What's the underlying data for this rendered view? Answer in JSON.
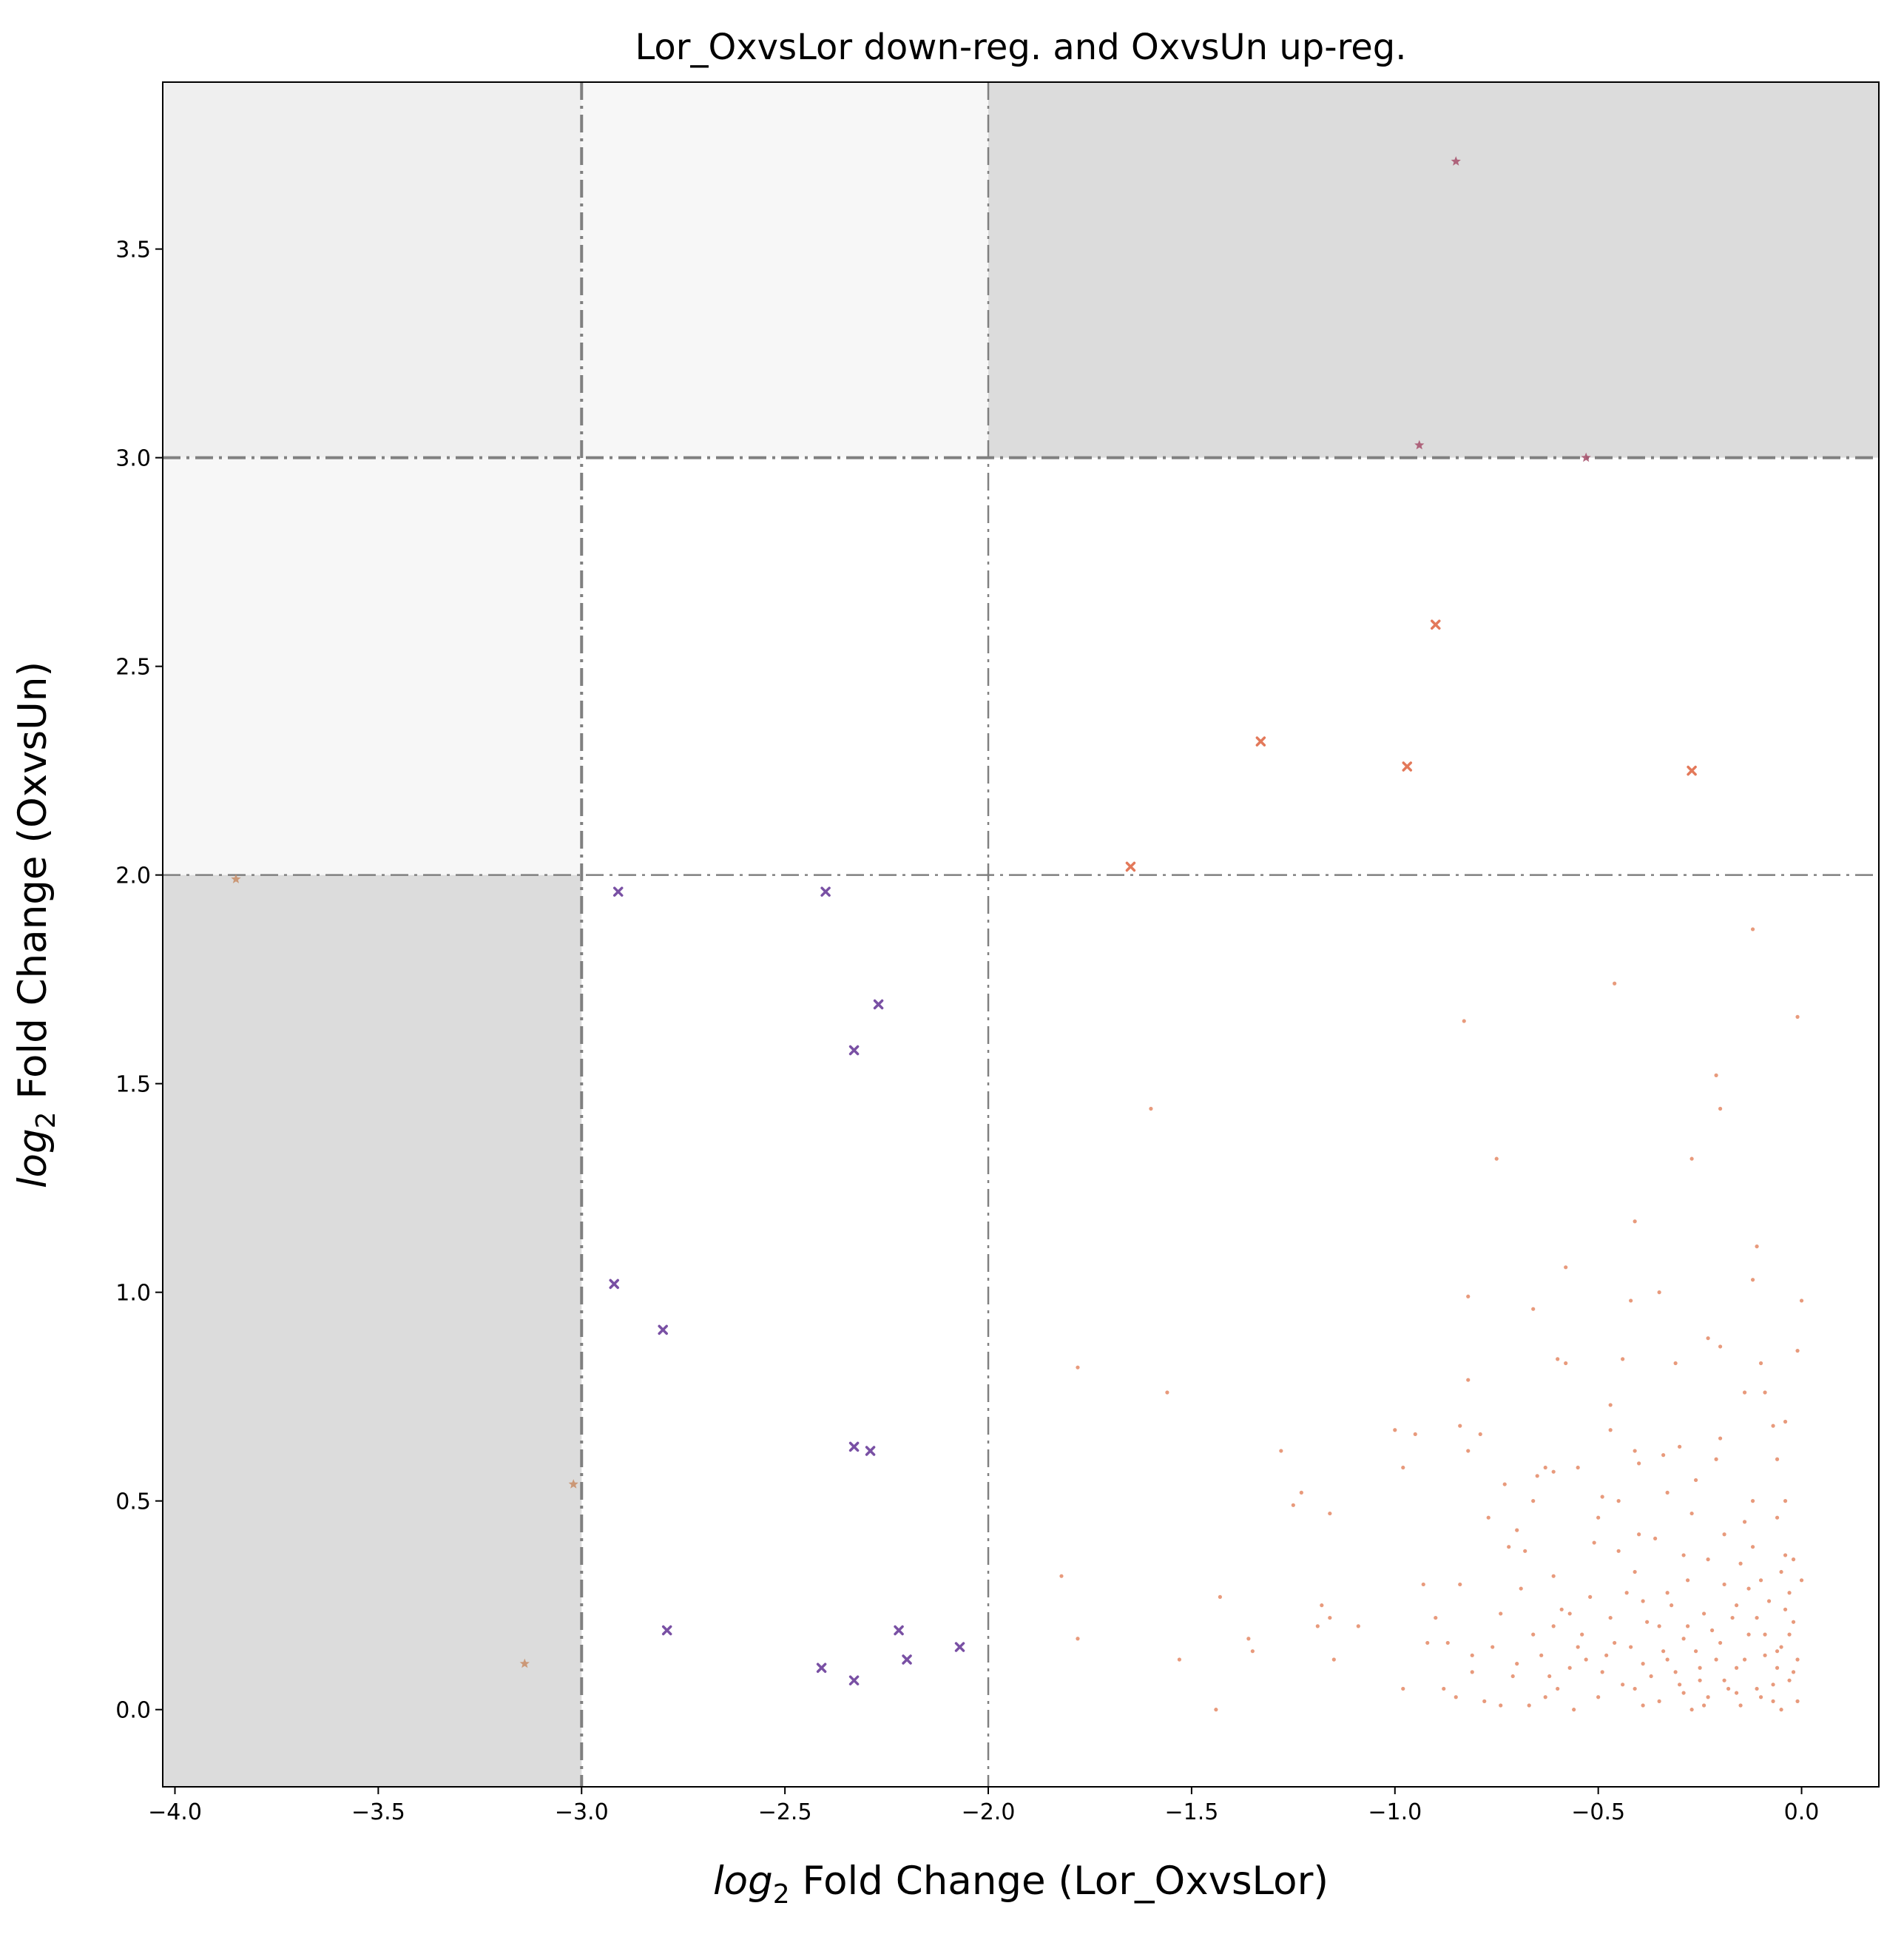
{
  "chart_data": {
    "type": "scatter",
    "title": "Lor_OxvsLor down-reg. and OxvsUn up-reg.",
    "xlabel_prefix": "log",
    "xlabel_sub": "2",
    "xlabel_rest": " Fold Change (Lor_OxvsLor)",
    "ylabel_prefix": "log",
    "ylabel_sub": "2",
    "ylabel_rest": " Fold Change (OxvsUn)",
    "xlim": [
      -4.03,
      0.19
    ],
    "ylim": [
      -0.185,
      3.9
    ],
    "xticks": [
      -4.0,
      -3.5,
      -3.0,
      -2.5,
      -2.0,
      -1.5,
      -1.0,
      -0.5,
      0.0
    ],
    "xtick_labels": [
      "−4.0",
      "−3.5",
      "−3.0",
      "−2.5",
      "−2.0",
      "−1.5",
      "−1.0",
      "−0.5",
      "0.0"
    ],
    "yticks": [
      0.0,
      0.5,
      1.0,
      1.5,
      2.0,
      2.5,
      3.0,
      3.5
    ],
    "ytick_labels": [
      "0.0",
      "0.5",
      "1.0",
      "1.5",
      "2.0",
      "2.5",
      "3.0",
      "3.5"
    ],
    "grid": false,
    "shaded_regions": [
      {
        "x": [
          -4.03,
          -3.0
        ],
        "y": [
          3.0,
          3.9
        ],
        "color": "#efefef"
      },
      {
        "x": [
          -3.0,
          -2.0
        ],
        "y": [
          3.0,
          3.9
        ],
        "color": "#f7f7f7"
      },
      {
        "x": [
          -2.0,
          0.19
        ],
        "y": [
          3.0,
          3.9
        ],
        "color": "#dcdcdc"
      },
      {
        "x": [
          -4.03,
          -3.0
        ],
        "y": [
          2.0,
          3.0
        ],
        "color": "#f7f7f7"
      },
      {
        "x": [
          -4.03,
          -3.0
        ],
        "y": [
          -0.185,
          2.0
        ],
        "color": "#dcdcdc"
      }
    ],
    "reference_lines": [
      {
        "orientation": "vertical",
        "value": -3.0,
        "width": 4
      },
      {
        "orientation": "vertical",
        "value": -2.0,
        "width": 2.5
      },
      {
        "orientation": "horizontal",
        "value": 3.0,
        "width": 4
      },
      {
        "orientation": "horizontal",
        "value": 2.0,
        "width": 2.5
      }
    ],
    "series": [
      {
        "marker": "star",
        "color": "#a85570",
        "points": [
          [
            -0.85,
            3.71
          ],
          [
            -0.94,
            3.03
          ],
          [
            -0.53,
            3.0
          ]
        ]
      },
      {
        "marker": "x",
        "color": "#e06a48",
        "points": [
          [
            -0.9,
            2.6
          ],
          [
            -1.33,
            2.32
          ],
          [
            -0.97,
            2.26
          ],
          [
            -0.27,
            2.25
          ],
          [
            -1.65,
            2.02
          ]
        ]
      },
      {
        "marker": "star",
        "color": "#c9906c",
        "points": [
          [
            -3.85,
            1.99
          ],
          [
            -3.02,
            0.54
          ],
          [
            -3.14,
            0.11
          ]
        ]
      },
      {
        "marker": "x",
        "color": "#6a3d9a",
        "points": [
          [
            -2.91,
            1.96
          ],
          [
            -2.4,
            1.96
          ],
          [
            -2.27,
            1.69
          ],
          [
            -2.33,
            1.58
          ],
          [
            -2.92,
            1.02
          ],
          [
            -2.8,
            0.91
          ],
          [
            -2.33,
            0.63
          ],
          [
            -2.29,
            0.62
          ],
          [
            -2.79,
            0.19
          ],
          [
            -2.22,
            0.19
          ],
          [
            -2.2,
            0.12
          ],
          [
            -2.07,
            0.15
          ],
          [
            -2.41,
            0.1
          ],
          [
            -2.33,
            0.07
          ]
        ]
      },
      {
        "marker": "dot",
        "color": "#e07850",
        "points": [
          [
            -0.12,
            1.87
          ],
          [
            -0.01,
            1.66
          ],
          [
            -0.46,
            1.74
          ],
          [
            -0.83,
            1.65
          ],
          [
            -1.6,
            1.44
          ],
          [
            -0.21,
            1.52
          ],
          [
            -0.2,
            1.44
          ],
          [
            -0.75,
            1.32
          ],
          [
            -0.27,
            1.32
          ],
          [
            -0.41,
            1.17
          ],
          [
            -0.11,
            1.11
          ],
          [
            -0.58,
            1.06
          ],
          [
            -0.35,
            1.0
          ],
          [
            -0.82,
            0.99
          ],
          [
            -0.42,
            0.98
          ],
          [
            -0.12,
            1.03
          ],
          [
            0.0,
            0.98
          ],
          [
            -0.66,
            0.96
          ],
          [
            -0.23,
            0.89
          ],
          [
            -0.2,
            0.87
          ],
          [
            -1.78,
            0.82
          ],
          [
            -0.6,
            0.84
          ],
          [
            -0.58,
            0.83
          ],
          [
            -0.31,
            0.83
          ],
          [
            -0.1,
            0.83
          ],
          [
            -0.44,
            0.84
          ],
          [
            -0.01,
            0.86
          ],
          [
            -0.82,
            0.79
          ],
          [
            -1.56,
            0.76
          ],
          [
            -0.09,
            0.76
          ],
          [
            -0.14,
            0.76
          ],
          [
            -0.47,
            0.73
          ],
          [
            -0.84,
            0.68
          ],
          [
            -1.0,
            0.67
          ],
          [
            -0.95,
            0.66
          ],
          [
            -0.79,
            0.66
          ],
          [
            -0.2,
            0.65
          ],
          [
            -0.47,
            0.67
          ],
          [
            -0.07,
            0.68
          ],
          [
            -0.04,
            0.69
          ],
          [
            -0.3,
            0.63
          ],
          [
            -1.28,
            0.62
          ],
          [
            -0.82,
            0.62
          ],
          [
            -0.41,
            0.62
          ],
          [
            -0.34,
            0.61
          ],
          [
            -0.55,
            0.58
          ],
          [
            -0.98,
            0.58
          ],
          [
            -0.4,
            0.59
          ],
          [
            -0.21,
            0.6
          ],
          [
            -0.06,
            0.6
          ],
          [
            -0.63,
            0.58
          ],
          [
            -0.65,
            0.56
          ],
          [
            -0.73,
            0.54
          ],
          [
            -0.61,
            0.57
          ],
          [
            -1.23,
            0.52
          ],
          [
            -0.26,
            0.55
          ],
          [
            -0.33,
            0.52
          ],
          [
            -0.49,
            0.51
          ],
          [
            -0.45,
            0.5
          ],
          [
            -0.12,
            0.5
          ],
          [
            -0.04,
            0.5
          ],
          [
            -0.66,
            0.5
          ],
          [
            -1.25,
            0.49
          ],
          [
            -1.16,
            0.47
          ],
          [
            -0.77,
            0.46
          ],
          [
            -0.5,
            0.46
          ],
          [
            -0.27,
            0.47
          ],
          [
            -0.14,
            0.45
          ],
          [
            -0.06,
            0.46
          ],
          [
            -0.7,
            0.43
          ],
          [
            -0.4,
            0.42
          ],
          [
            -0.19,
            0.42
          ],
          [
            -0.36,
            0.41
          ],
          [
            -0.51,
            0.4
          ],
          [
            -0.12,
            0.39
          ],
          [
            -0.04,
            0.37
          ],
          [
            -0.02,
            0.36
          ],
          [
            -0.29,
            0.37
          ],
          [
            -0.72,
            0.39
          ],
          [
            -0.68,
            0.38
          ],
          [
            -0.45,
            0.38
          ],
          [
            -0.23,
            0.36
          ],
          [
            -0.15,
            0.35
          ],
          [
            -0.41,
            0.33
          ],
          [
            -1.82,
            0.32
          ],
          [
            -0.61,
            0.32
          ],
          [
            -0.05,
            0.33
          ],
          [
            -0.28,
            0.31
          ],
          [
            -0.84,
            0.3
          ],
          [
            -0.93,
            0.3
          ],
          [
            -0.19,
            0.3
          ],
          [
            -0.1,
            0.31
          ],
          [
            -0.33,
            0.28
          ],
          [
            -0.52,
            0.27
          ],
          [
            -0.69,
            0.29
          ],
          [
            -0.03,
            0.28
          ],
          [
            -1.43,
            0.27
          ],
          [
            -0.39,
            0.26
          ],
          [
            -0.16,
            0.25
          ],
          [
            -0.08,
            0.26
          ],
          [
            -0.24,
            0.23
          ],
          [
            -0.57,
            0.23
          ],
          [
            -0.74,
            0.23
          ],
          [
            -0.47,
            0.22
          ],
          [
            -0.11,
            0.22
          ],
          [
            -1.18,
            0.25
          ],
          [
            -1.16,
            0.22
          ],
          [
            -0.9,
            0.22
          ],
          [
            -1.09,
            0.2
          ],
          [
            -1.19,
            0.2
          ],
          [
            -0.61,
            0.2
          ],
          [
            -0.35,
            0.2
          ],
          [
            -0.02,
            0.21
          ],
          [
            -0.66,
            0.18
          ],
          [
            -0.54,
            0.18
          ],
          [
            -0.29,
            0.17
          ],
          [
            -0.13,
            0.18
          ],
          [
            -0.2,
            0.16
          ],
          [
            -1.78,
            0.17
          ],
          [
            -1.36,
            0.17
          ],
          [
            -1.35,
            0.14
          ],
          [
            -0.76,
            0.15
          ],
          [
            -0.42,
            0.15
          ],
          [
            -0.05,
            0.15
          ],
          [
            -0.92,
            0.16
          ],
          [
            -0.87,
            0.16
          ],
          [
            -0.64,
            0.13
          ],
          [
            -0.48,
            0.13
          ],
          [
            -0.33,
            0.12
          ],
          [
            -0.09,
            0.13
          ],
          [
            -0.01,
            0.12
          ],
          [
            -1.53,
            0.12
          ],
          [
            -1.15,
            0.12
          ],
          [
            -0.57,
            0.1
          ],
          [
            -0.25,
            0.1
          ],
          [
            -0.16,
            0.1
          ],
          [
            -0.06,
            0.1
          ],
          [
            -0.81,
            0.09
          ],
          [
            -0.71,
            0.08
          ],
          [
            -0.37,
            0.08
          ],
          [
            -0.44,
            0.06
          ],
          [
            -0.19,
            0.07
          ],
          [
            -0.03,
            0.07
          ],
          [
            -0.98,
            0.05
          ],
          [
            -0.88,
            0.05
          ],
          [
            -0.6,
            0.05
          ],
          [
            -0.29,
            0.04
          ],
          [
            -0.11,
            0.05
          ],
          [
            -0.5,
            0.03
          ],
          [
            -0.23,
            0.03
          ],
          [
            -0.07,
            0.02
          ],
          [
            -0.01,
            0.02
          ],
          [
            -0.78,
            0.02
          ],
          [
            -0.67,
            0.01
          ],
          [
            -0.39,
            0.01
          ],
          [
            -0.15,
            0.01
          ],
          [
            -1.44,
            0.0
          ],
          [
            -0.05,
            0.0
          ],
          [
            -0.27,
            0.0
          ],
          [
            -0.56,
            0.0
          ],
          [
            -0.85,
            0.03
          ],
          [
            -0.74,
            0.01
          ],
          [
            -0.62,
            0.08
          ],
          [
            -0.53,
            0.12
          ],
          [
            -0.46,
            0.16
          ],
          [
            -0.41,
            0.05
          ],
          [
            -0.35,
            0.02
          ],
          [
            -0.31,
            0.09
          ],
          [
            -0.26,
            0.14
          ],
          [
            -0.22,
            0.19
          ],
          [
            -0.18,
            0.05
          ],
          [
            -0.14,
            0.12
          ],
          [
            -0.09,
            0.18
          ],
          [
            -0.07,
            0.06
          ],
          [
            -0.04,
            0.24
          ],
          [
            -0.02,
            0.09
          ],
          [
            0.0,
            0.31
          ],
          [
            -0.32,
            0.25
          ],
          [
            -0.38,
            0.21
          ],
          [
            -0.43,
            0.28
          ],
          [
            -0.49,
            0.09
          ],
          [
            -0.55,
            0.15
          ],
          [
            -0.59,
            0.24
          ],
          [
            -0.63,
            0.03
          ],
          [
            -0.7,
            0.11
          ],
          [
            -0.81,
            0.13
          ],
          [
            -0.13,
            0.29
          ],
          [
            -0.17,
            0.22
          ],
          [
            -0.21,
            0.12
          ],
          [
            -0.25,
            0.07
          ],
          [
            -0.28,
            0.2
          ],
          [
            -0.34,
            0.14
          ],
          [
            -0.39,
            0.11
          ],
          [
            -0.1,
            0.03
          ],
          [
            -0.06,
            0.14
          ],
          [
            -0.03,
            0.18
          ],
          [
            -0.16,
            0.04
          ],
          [
            -0.24,
            0.01
          ],
          [
            -0.3,
            0.06
          ]
        ]
      }
    ]
  }
}
